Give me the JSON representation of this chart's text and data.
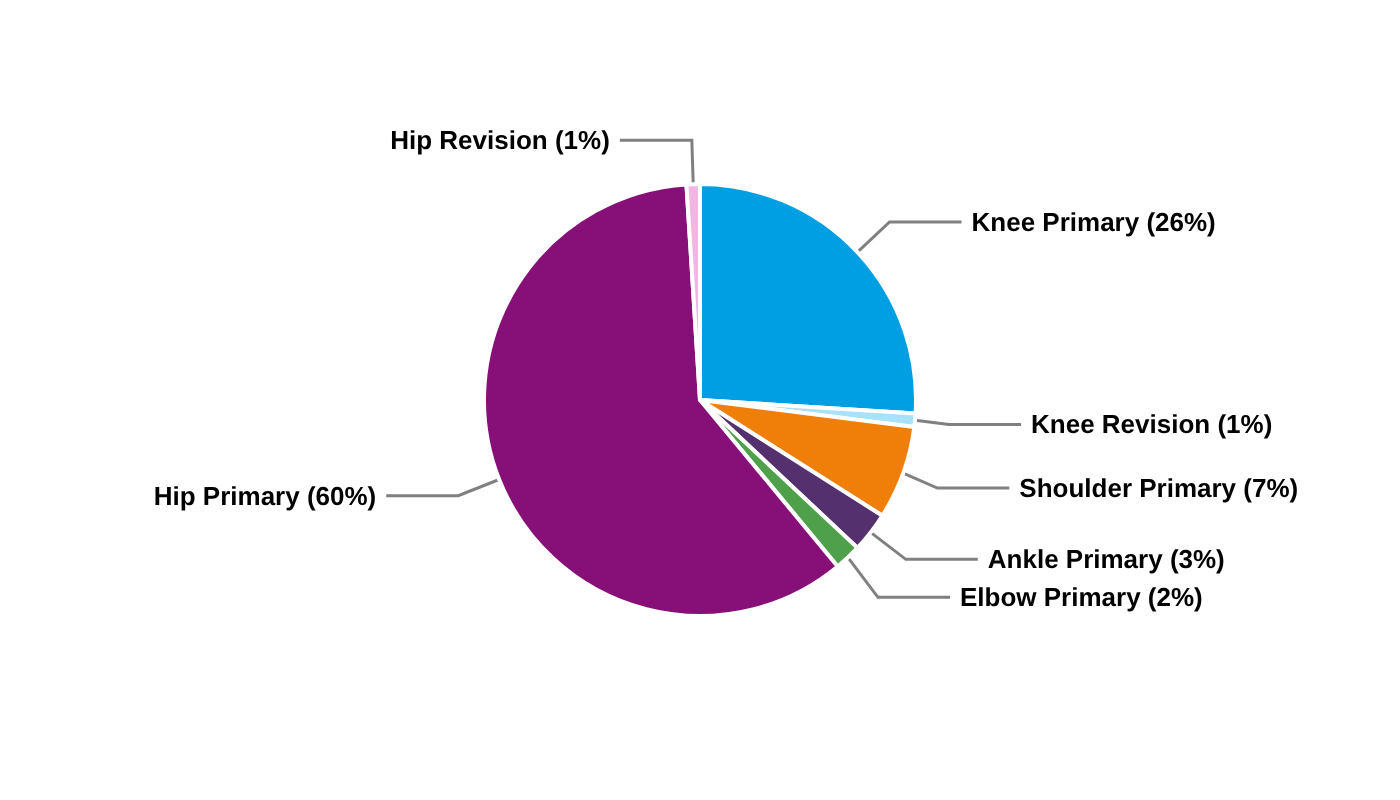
{
  "chart_data": {
    "type": "pie",
    "categories": [
      "Knee Primary",
      "Knee Revision",
      "Shoulder Primary",
      "Ankle Primary",
      "Elbow Primary",
      "Hip Primary",
      "Hip Revision"
    ],
    "values": [
      26,
      1,
      7,
      3,
      2,
      60,
      1
    ],
    "value_labels": [
      "(26%)",
      "(1%)",
      "(7%)",
      "(3%)",
      "(2%)",
      "(60%)",
      "(1%)"
    ],
    "colors": [
      "#009fe3",
      "#a8e2f8",
      "#f07f09",
      "#54306e",
      "#4ea04a",
      "#871078",
      "#f2b6e2"
    ],
    "legend": false
  }
}
